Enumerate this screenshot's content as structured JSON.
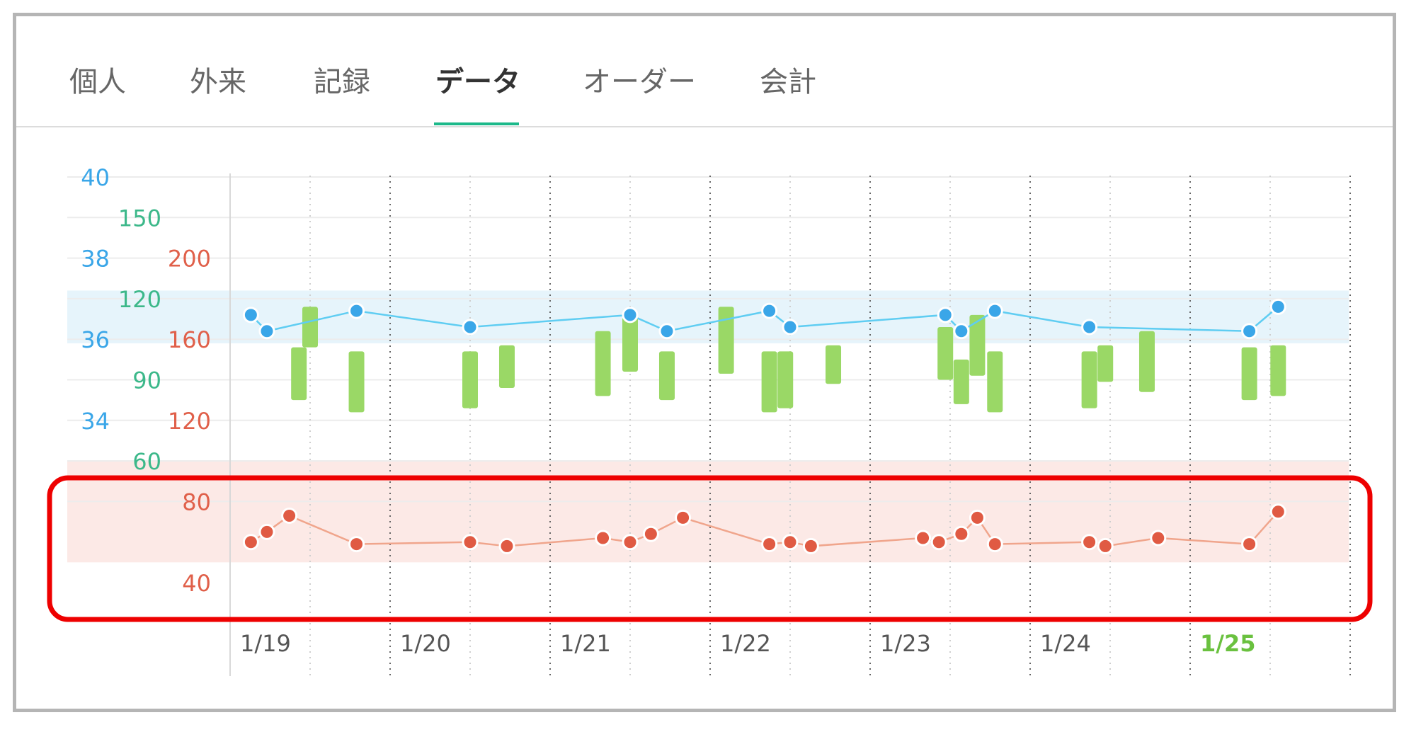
{
  "tabs": [
    {
      "label": "個人",
      "active": false
    },
    {
      "label": "外来",
      "active": false
    },
    {
      "label": "記録",
      "active": false
    },
    {
      "label": "データ",
      "active": true
    },
    {
      "label": "オーダー",
      "active": false
    },
    {
      "label": "会計",
      "active": false
    }
  ],
  "colors": {
    "temp": "#3aa6e8",
    "temp_line": "#5fcdf2",
    "pulse_scale": "#3cb88a",
    "bp_scale": "#e0604a",
    "bp_bar": "#9ad866",
    "resp": "#e05a43",
    "resp_line": "#f0a58c",
    "today": "#6ac13f",
    "highlight": "#ee0000"
  },
  "chart_data": {
    "type": "line",
    "x_labels": [
      "1/19",
      "1/20",
      "1/21",
      "1/22",
      "1/23",
      "1/24",
      "1/25"
    ],
    "today_label": "1/25",
    "axes": {
      "temperature": {
        "ticks": [
          40,
          38,
          36,
          34
        ],
        "range": [
          33,
          40
        ]
      },
      "pulse": {
        "ticks": [
          150,
          120,
          90,
          60
        ],
        "range": [
          45,
          165
        ]
      },
      "blood_pressure": {
        "ticks": [
          200,
          160,
          120,
          80,
          40
        ],
        "range": [
          40,
          240
        ]
      }
    },
    "normal_bands": {
      "temperature": [
        35.9,
        37.2
      ],
      "resp_rate": [
        50,
        100
      ]
    },
    "series": [
      {
        "type": "line",
        "unit": "temperature",
        "points": [
          [
            "1/19",
            0.13,
            36.6
          ],
          [
            "1/19",
            0.23,
            36.2
          ],
          [
            "1/19",
            0.79,
            36.7
          ],
          [
            "1/20",
            0.5,
            36.3
          ],
          [
            "1/21",
            0.5,
            36.6
          ],
          [
            "1/21",
            0.73,
            36.2
          ],
          [
            "1/22",
            0.37,
            36.7
          ],
          [
            "1/22",
            0.5,
            36.3
          ],
          [
            "1/23",
            0.47,
            36.6
          ],
          [
            "1/23",
            0.57,
            36.2
          ],
          [
            "1/23",
            0.78,
            36.7
          ],
          [
            "1/24",
            0.37,
            36.3
          ],
          [
            "1/25",
            0.37,
            36.2
          ],
          [
            "1/25",
            0.55,
            36.8
          ]
        ]
      },
      {
        "type": "bar-range",
        "unit": "blood_pressure",
        "ranges": [
          [
            "1/19",
            0.43,
            156,
            130
          ],
          [
            "1/19",
            0.5,
            176,
            156
          ],
          [
            "1/19",
            0.79,
            154,
            124
          ],
          [
            "1/20",
            0.5,
            154,
            126
          ],
          [
            "1/20",
            0.73,
            157,
            136
          ],
          [
            "1/21",
            0.33,
            164,
            132
          ],
          [
            "1/21",
            0.5,
            171,
            144
          ],
          [
            "1/21",
            0.73,
            154,
            130
          ],
          [
            "1/22",
            0.1,
            176,
            143
          ],
          [
            "1/22",
            0.37,
            154,
            124
          ],
          [
            "1/22",
            0.47,
            154,
            126
          ],
          [
            "1/22",
            0.77,
            157,
            138
          ],
          [
            "1/23",
            0.47,
            166,
            140
          ],
          [
            "1/23",
            0.57,
            150,
            128
          ],
          [
            "1/23",
            0.67,
            172,
            142
          ],
          [
            "1/23",
            0.78,
            154,
            124
          ],
          [
            "1/24",
            0.37,
            154,
            126
          ],
          [
            "1/24",
            0.47,
            157,
            139
          ],
          [
            "1/24",
            0.73,
            164,
            134
          ],
          [
            "1/25",
            0.37,
            156,
            130
          ],
          [
            "1/25",
            0.55,
            157,
            132
          ]
        ]
      },
      {
        "type": "line",
        "unit": "resp_rate",
        "points": [
          [
            "1/19",
            0.13,
            60
          ],
          [
            "1/19",
            0.23,
            65
          ],
          [
            "1/19",
            0.37,
            73
          ],
          [
            "1/19",
            0.79,
            59
          ],
          [
            "1/20",
            0.5,
            60
          ],
          [
            "1/20",
            0.73,
            58
          ],
          [
            "1/21",
            0.33,
            62
          ],
          [
            "1/21",
            0.5,
            60
          ],
          [
            "1/21",
            0.63,
            64
          ],
          [
            "1/21",
            0.83,
            72
          ],
          [
            "1/22",
            0.37,
            59
          ],
          [
            "1/22",
            0.5,
            60
          ],
          [
            "1/22",
            0.63,
            58
          ],
          [
            "1/23",
            0.33,
            62
          ],
          [
            "1/23",
            0.43,
            60
          ],
          [
            "1/23",
            0.57,
            64
          ],
          [
            "1/23",
            0.67,
            72
          ],
          [
            "1/23",
            0.78,
            59
          ],
          [
            "1/24",
            0.37,
            60
          ],
          [
            "1/24",
            0.47,
            58
          ],
          [
            "1/24",
            0.8,
            62
          ],
          [
            "1/25",
            0.37,
            59
          ],
          [
            "1/25",
            0.55,
            75
          ]
        ]
      }
    ],
    "highlight_region": "resp_rate"
  }
}
